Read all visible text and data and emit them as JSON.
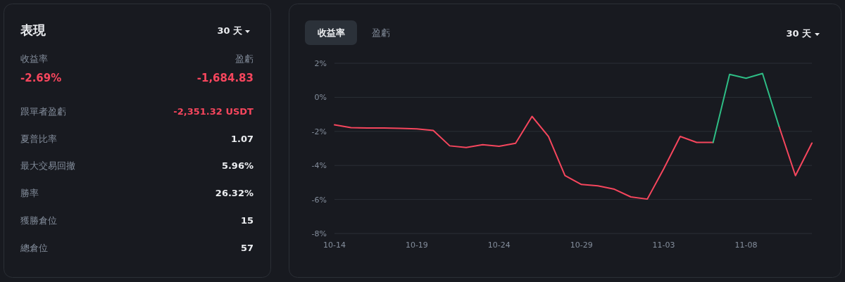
{
  "chart_data": [
    {
      "type": "other",
      "title": "表現",
      "annotations": [
        "30 天",
        "收益率",
        "盈虧",
        "-2.69%",
        "-1,684.83",
        "跟單者盈虧",
        "-2,351.32 USDT",
        "夏普比率",
        "1.07",
        "最大交易回撤",
        "5.96%",
        "勝率",
        "26.32%",
        "獲勝倉位",
        "15",
        "總倉位",
        "57"
      ]
    },
    {
      "type": "line",
      "annotations": [
        "收益率",
        "盈虧",
        "30 天"
      ],
      "x": [
        "--10-14",
        "--10-15",
        "--10-16",
        "--10-17",
        "--10-18",
        "--10-19",
        "--10-20",
        "--10-21",
        "--10-22",
        "--10-23",
        "--10-24",
        "--10-25",
        "--10-26",
        "--10-27",
        "--10-28",
        "--10-29",
        "--10-30",
        "--10-31",
        "--11-01",
        "--11-02",
        "--11-03",
        "--11-04",
        "--11-05",
        "--11-06",
        "--11-07",
        "--11-08",
        "--11-09",
        "--11-10",
        "--11-11",
        "--11-12"
      ],
      "series": [
        {
          "color": "#f6465d",
          "values": [
            -1.62,
            -1.78,
            -1.8,
            -1.8,
            -1.82,
            -1.85,
            -1.95,
            -2.85,
            -2.95,
            -2.78,
            -2.88,
            -2.7,
            -1.12,
            -2.3,
            -4.6,
            -5.12,
            -5.2,
            -5.4,
            -5.85,
            -5.98,
            -4.2,
            -2.3,
            -2.65,
            -2.65,
            null,
            null,
            null,
            -1.7,
            -4.6,
            -2.69
          ]
        },
        {
          "color": "#2ebd85",
          "values": [
            null,
            null,
            null,
            null,
            null,
            null,
            null,
            null,
            null,
            null,
            null,
            null,
            null,
            null,
            null,
            null,
            null,
            null,
            null,
            null,
            null,
            null,
            null,
            -2.65,
            1.35,
            1.12,
            1.4,
            -1.7,
            null,
            null
          ]
        }
      ],
      "xlim": [
        "--10-14",
        "--11-12"
      ],
      "xticks": [
        {
          "value": "--10-14",
          "label": "10-14"
        },
        {
          "value": "--10-19",
          "label": "10-19"
        },
        {
          "value": "--10-24",
          "label": "10-24"
        },
        {
          "value": "--10-29",
          "label": "10-29"
        },
        {
          "value": "--11-03",
          "label": "11-03"
        },
        {
          "value": "--11-08",
          "label": "11-08"
        }
      ],
      "ylim": [
        -8,
        2
      ],
      "yticks": [
        {
          "value": 2,
          "label": "2%"
        },
        {
          "value": 0,
          "label": "0%"
        },
        {
          "value": -2,
          "label": "-2%"
        },
        {
          "value": -4,
          "label": "-4%"
        },
        {
          "value": -6,
          "label": "-6%"
        },
        {
          "value": -8,
          "label": "-8%"
        }
      ],
      "grid": "y",
      "marker": "none",
      "line_style": "solid"
    }
  ]
}
